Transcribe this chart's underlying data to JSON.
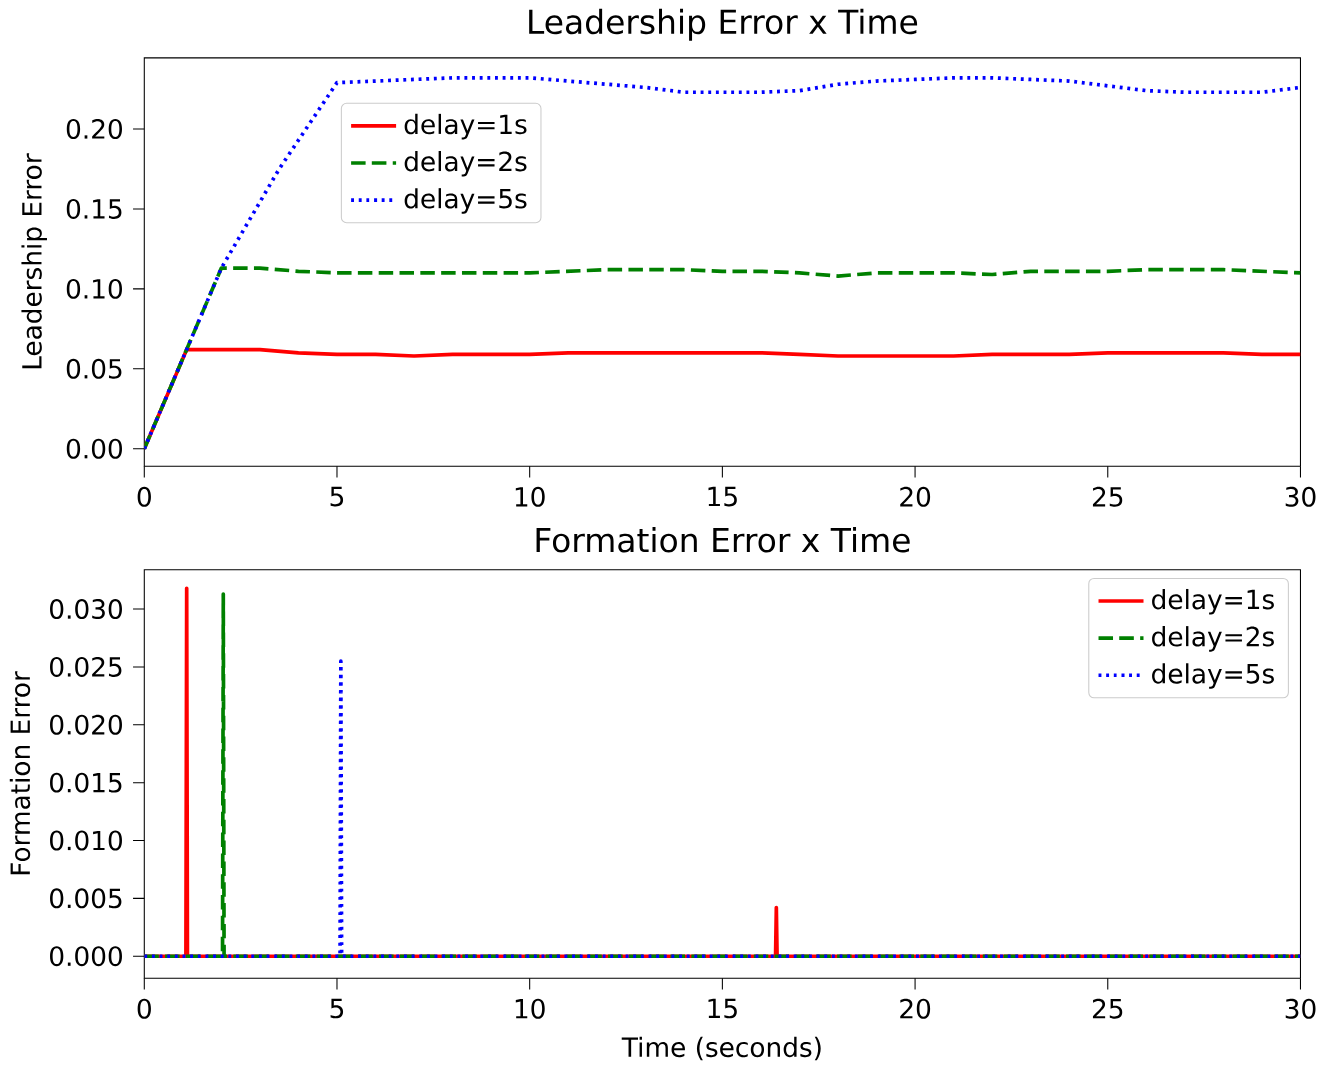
{
  "chart_data": [
    {
      "type": "line",
      "title": "Leadership Error x Time",
      "ylabel": "Leadership Error",
      "xlim": [
        0,
        30
      ],
      "ylim": [
        -0.011,
        0.2445
      ],
      "xticks": [
        0,
        5,
        10,
        15,
        20,
        25,
        30
      ],
      "yticks": [
        {
          "value": 0,
          "label": "0.00"
        },
        {
          "value": 0.05,
          "label": "0.05"
        },
        {
          "value": 0.1,
          "label": "0.10"
        },
        {
          "value": 0.15,
          "label": "0.15"
        },
        {
          "value": 0.2,
          "label": "0.20"
        }
      ],
      "legend": "top left",
      "series": [
        {
          "name": "delay=1s",
          "color": "#ff0000",
          "line_style": "solid",
          "x": [
            0,
            1.1,
            2,
            3,
            4,
            5,
            6,
            7,
            8,
            9,
            10,
            11,
            12,
            13,
            14,
            15,
            16,
            17,
            18,
            19,
            20,
            21,
            22,
            23,
            24,
            25,
            26,
            27,
            28,
            29,
            30
          ],
          "values": [
            0,
            0.062,
            0.062,
            0.062,
            0.06,
            0.059,
            0.059,
            0.058,
            0.059,
            0.059,
            0.059,
            0.06,
            0.06,
            0.06,
            0.06,
            0.06,
            0.06,
            0.059,
            0.058,
            0.058,
            0.058,
            0.058,
            0.059,
            0.059,
            0.059,
            0.06,
            0.06,
            0.06,
            0.06,
            0.059,
            0.059
          ]
        },
        {
          "name": "delay=2s",
          "color": "#008000",
          "line_style": "dashed",
          "x": [
            0,
            2,
            3,
            4,
            5,
            6,
            7,
            8,
            9,
            10,
            11,
            12,
            13,
            14,
            15,
            16,
            17,
            18,
            19,
            20,
            21,
            22,
            23,
            24,
            25,
            26,
            27,
            28,
            29,
            30
          ],
          "values": [
            0,
            0.113,
            0.113,
            0.111,
            0.11,
            0.11,
            0.11,
            0.11,
            0.11,
            0.11,
            0.111,
            0.112,
            0.112,
            0.112,
            0.111,
            0.111,
            0.11,
            0.108,
            0.11,
            0.11,
            0.11,
            0.109,
            0.111,
            0.111,
            0.111,
            0.112,
            0.112,
            0.112,
            0.111,
            0.11
          ]
        },
        {
          "name": "delay=5s",
          "color": "#0000ff",
          "line_style": "dotted",
          "x": [
            0,
            2,
            3.5,
            5,
            6,
            7,
            8,
            9,
            10,
            11,
            12,
            13,
            14,
            15,
            16,
            17,
            18,
            19,
            20,
            21,
            22,
            23,
            24,
            25,
            26,
            27,
            28,
            29,
            30
          ],
          "values": [
            0,
            0.113,
            0.175,
            0.229,
            0.23,
            0.231,
            0.232,
            0.232,
            0.232,
            0.23,
            0.228,
            0.226,
            0.223,
            0.223,
            0.223,
            0.224,
            0.228,
            0.23,
            0.231,
            0.232,
            0.232,
            0.231,
            0.23,
            0.227,
            0.224,
            0.223,
            0.223,
            0.223,
            0.226
          ]
        }
      ]
    },
    {
      "type": "line",
      "title": "Formation Error x Time",
      "xlabel": "Time (seconds)",
      "ylabel": "Formation Error",
      "xlim": [
        0,
        30
      ],
      "ylim": [
        -0.0019,
        0.0334
      ],
      "xticks": [
        0,
        5,
        10,
        15,
        20,
        25,
        30
      ],
      "yticks": [
        {
          "value": 0,
          "label": "0.000"
        },
        {
          "value": 0.005,
          "label": "0.005"
        },
        {
          "value": 0.01,
          "label": "0.010"
        },
        {
          "value": 0.015,
          "label": "0.015"
        },
        {
          "value": 0.02,
          "label": "0.020"
        },
        {
          "value": 0.025,
          "label": "0.025"
        },
        {
          "value": 0.03,
          "label": "0.030"
        }
      ],
      "legend": "top right",
      "series": [
        {
          "name": "delay=1s",
          "color": "#ff0000",
          "line_style": "solid",
          "x": [
            0,
            1.08,
            1.1,
            1.12,
            16.38,
            16.4,
            16.42,
            30
          ],
          "values": [
            0,
            0,
            0.0318,
            0,
            0,
            0.0042,
            0,
            0
          ]
        },
        {
          "name": "delay=2s",
          "color": "#008000",
          "line_style": "dashed",
          "x": [
            0,
            2.03,
            2.05,
            2.07,
            30
          ],
          "values": [
            0,
            0,
            0.0313,
            0,
            0
          ]
        },
        {
          "name": "delay=5s",
          "color": "#0000ff",
          "line_style": "dotted",
          "x": [
            0,
            5.08,
            5.1,
            5.12,
            30
          ],
          "values": [
            0,
            0,
            0.0255,
            0,
            0
          ]
        }
      ]
    }
  ]
}
